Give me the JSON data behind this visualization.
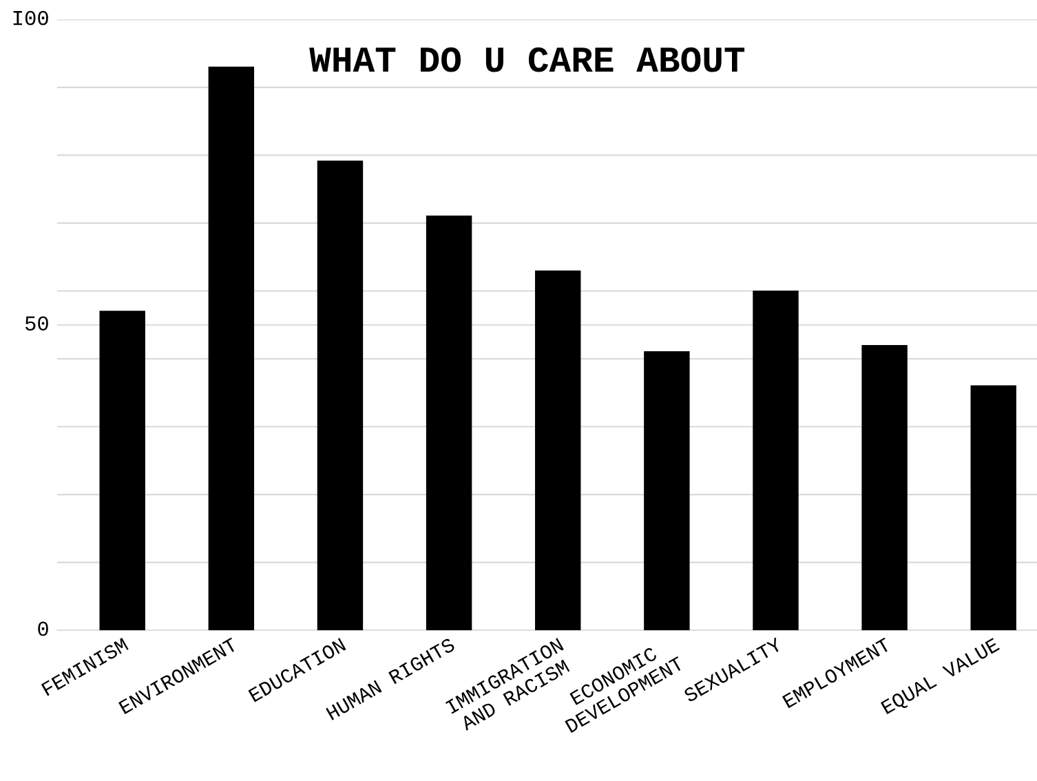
{
  "chart_data": {
    "type": "bar",
    "title": "WHAT DO U CARE ABOUT",
    "categories": [
      "FEMINISM",
      "ENVIRONMENT",
      "EDUCATION",
      "HUMAN RIGHTS",
      "IMMIGRATION\nAND RACISM",
      "ECONOMIC\nDEVELOPMENT",
      "SEXUALITY",
      "EMPLOYMENT",
      "EQUAL VALUE"
    ],
    "values": [
      52.3,
      92.3,
      76.9,
      67.9,
      58.9,
      45.7,
      55.6,
      46.7,
      40.1
    ],
    "color": "#000000",
    "ylim": [
      0,
      100
    ],
    "yticks": [
      0,
      {
        "value": 11.11,
        "label": null
      },
      {
        "value": 22.22,
        "label": null
      },
      {
        "value": 33.33,
        "label": null
      },
      {
        "value": 44.44,
        "label": null
      },
      50,
      {
        "value": 55.56,
        "label": null
      },
      {
        "value": 66.67,
        "label": null
      },
      {
        "value": 77.78,
        "label": null
      },
      {
        "value": 88.89,
        "label": null
      },
      {
        "value": 100,
        "label": "I00"
      }
    ],
    "grid": "y"
  }
}
